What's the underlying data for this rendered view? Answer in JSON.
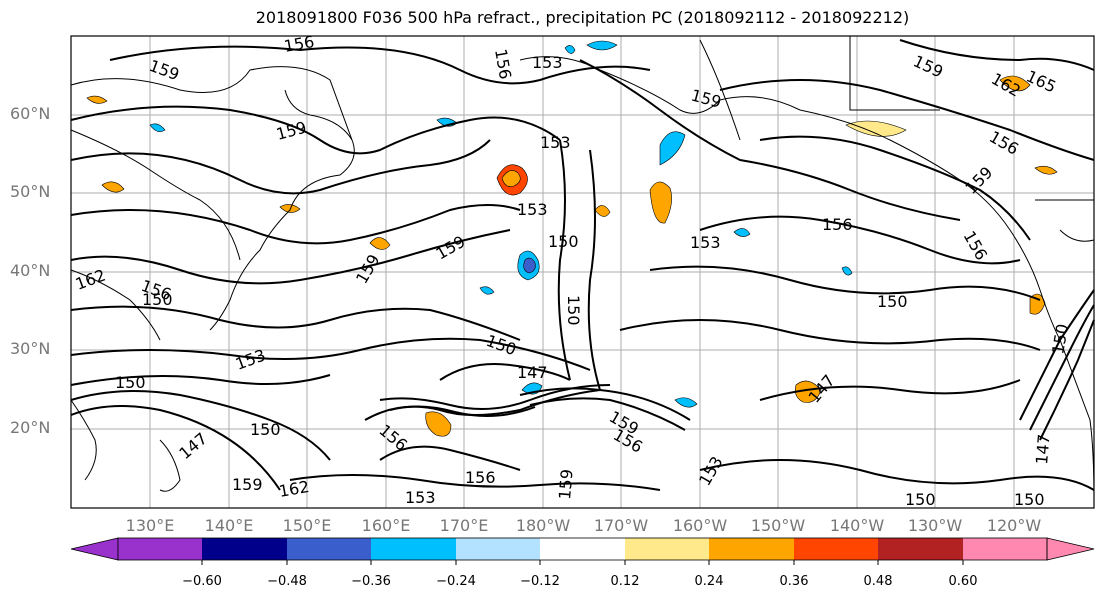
{
  "title": "2018091800 F036 500 hPa refract., precipitation PC (2018092112 - 2018092212)",
  "lat_labels": [
    "60°N",
    "50°N",
    "40°N",
    "30°N",
    "20°N"
  ],
  "lon_labels": [
    "130°E",
    "140°E",
    "150°E",
    "160°E",
    "170°E",
    "180°W",
    "170°W",
    "160°W",
    "150°W",
    "140°W",
    "130°W",
    "120°W"
  ],
  "contour_labels": [
    "159",
    "156",
    "153",
    "159",
    "153",
    "156",
    "153",
    "150",
    "153",
    "156",
    "159",
    "150",
    "150",
    "147",
    "159",
    "150",
    "159",
    "156",
    "150",
    "156",
    "153",
    "162",
    "150",
    "147",
    "159",
    "153",
    "156",
    "159",
    "165",
    "162",
    "159",
    "156",
    "153",
    "150",
    "147",
    "156",
    "159",
    "162",
    "156",
    "150",
    "147",
    "150",
    "159",
    "150"
  ],
  "colorbar": {
    "tick_labels": [
      "−0.60",
      "−0.48",
      "−0.36",
      "−0.24",
      "−0.12",
      "0.12",
      "0.24",
      "0.36",
      "0.48",
      "0.60"
    ],
    "colors": [
      "#9932cc",
      "#00008b",
      "#3a5fcd",
      "#00bfff",
      "#b2e2ff",
      "#ffffff",
      "#ffe98a",
      "#ffa500",
      "#ff4500",
      "#b22222",
      "#ff88b0"
    ]
  }
}
